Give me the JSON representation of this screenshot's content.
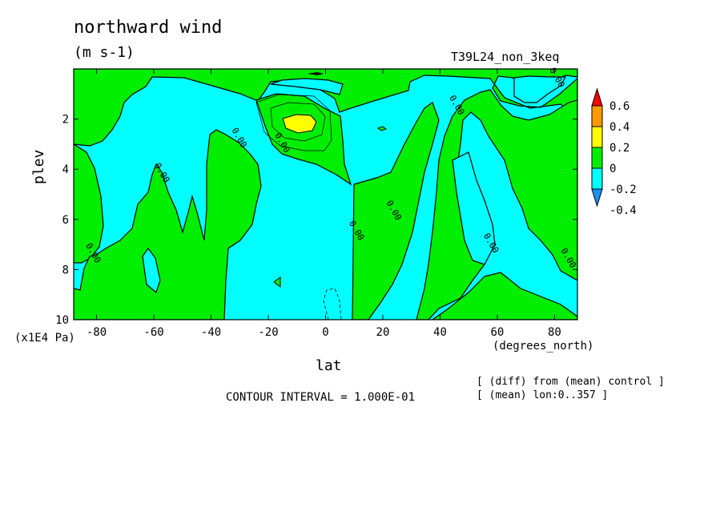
{
  "header": {
    "title": "northward wind",
    "units": "(m s-1)",
    "run": "T39L24_non_3keq"
  },
  "footer": {
    "contour_interval": "CONTOUR INTERVAL = 1.000E-01",
    "note1": "[ (diff) from (mean) control ]",
    "note2": "[ (mean) lon:0..357 ]"
  },
  "colors": {
    "band_neg4": "#1e90ff",
    "band_neg2": "#00ffff",
    "band_0": "#00ee00",
    "band_2": "#ffff00",
    "band_4": "#ff9900",
    "band_6": "#ff0000"
  },
  "chart_data": {
    "type": "heatmap",
    "title": "northward wind",
    "units": "(m s-1)",
    "xlabel": "lat",
    "xunit": "(degrees_north)",
    "ylabel": "plev",
    "yunit": "(x1E4 Pa)",
    "xlim": [
      -88,
      88
    ],
    "ylim": [
      10,
      0
    ],
    "xticks": [
      -80,
      -60,
      -40,
      -20,
      0,
      20,
      40,
      60,
      80
    ],
    "yticks": [
      2,
      4,
      6,
      8,
      10
    ],
    "xtick_labels": [
      "-80",
      "-60",
      "-40",
      "-20",
      "0",
      "20",
      "40",
      "60",
      "80"
    ],
    "ytick_labels": [
      "2",
      "4",
      "6",
      "8",
      "10"
    ],
    "colorbar": {
      "levels": [
        -0.4,
        -0.2,
        0,
        0.2,
        0.4,
        0.6
      ],
      "labels": [
        "-0.4",
        "-0.2",
        "0",
        "0.2",
        "0.4",
        "0.6"
      ],
      "colors": [
        "#1e90ff",
        "#00ffff",
        "#00ee00",
        "#ffff00",
        "#ff9900",
        "#ff0000"
      ]
    },
    "contour_interval": 0.1,
    "contour_labels": [
      {
        "lat": -82,
        "plev": 7.4,
        "text": "0.00"
      },
      {
        "lat": -58,
        "plev": 4.2,
        "text": "0.00"
      },
      {
        "lat": -31,
        "plev": 2.8,
        "text": "0.00"
      },
      {
        "lat": -16,
        "plev": 3.0,
        "text": "0.00"
      },
      {
        "lat": 10,
        "plev": 6.5,
        "text": "0.00"
      },
      {
        "lat": 23,
        "plev": 5.7,
        "text": "0.00"
      },
      {
        "lat": 45,
        "plev": 1.5,
        "text": "0.00"
      },
      {
        "lat": 57,
        "plev": 7.0,
        "text": "0.00"
      },
      {
        "lat": 80,
        "plev": 0.4,
        "text": "0.00"
      },
      {
        "lat": 84,
        "plev": 7.6,
        "text": "0.00"
      }
    ]
  }
}
